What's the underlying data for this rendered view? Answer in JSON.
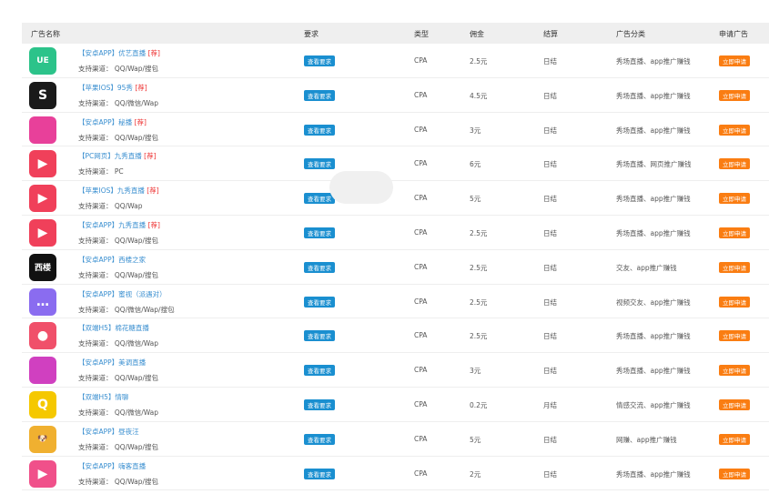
{
  "headers": {
    "name": "广告名称",
    "req": "要求",
    "type": "类型",
    "commission": "佣金",
    "settle": "结算",
    "category": "广告分类",
    "apply": "申请广告"
  },
  "channel_prefix": "支持渠道：",
  "view_req_label": "查看要求",
  "apply_label": "立即申请",
  "colors": {
    "link": "#3a8fd0",
    "req_button": "#1a8fd0",
    "apply_button": "#fa7d12",
    "tag": "#e33333"
  },
  "rows": [
    {
      "title": "【安卓APP】优艺直播",
      "tag": "[荐]",
      "channels": "QQ/Wap/搜包",
      "type": "CPA",
      "commission": "2.5元",
      "settle": "日结",
      "category": "秀场直播、app推广赚钱",
      "icon": "ue-logo-icon",
      "icon_color": "#2cc38a",
      "icon_text": "UE"
    },
    {
      "title": "【苹果IOS】95秀",
      "tag": "[荐]",
      "channels": "QQ/微信/Wap",
      "type": "CPA",
      "commission": "4.5元",
      "settle": "日结",
      "category": "秀场直播、app推广赚钱",
      "icon": "95xiu-logo-icon",
      "icon_color": "#1a1a1a",
      "icon_text": "S"
    },
    {
      "title": "【安卓APP】秘播",
      "tag": "[荐]",
      "channels": "QQ/Wap/搜包",
      "type": "CPA",
      "commission": "3元",
      "settle": "日结",
      "category": "秀场直播、app推广赚钱",
      "icon": "mibo-logo-icon",
      "icon_color": "#e8409a",
      "icon_text": ""
    },
    {
      "title": "【PC网页】九秀直播",
      "tag": "[荐]",
      "channels": "PC",
      "type": "CPA",
      "commission": "6元",
      "settle": "日结",
      "category": "秀场直播、网页推广赚钱",
      "icon": "jiuxiu-logo-icon",
      "icon_color": "#f0405a",
      "icon_text": "▶"
    },
    {
      "title": "【苹果IOS】九秀直播",
      "tag": "[荐]",
      "channels": "QQ/Wap",
      "type": "CPA",
      "commission": "5元",
      "settle": "日结",
      "category": "秀场直播、app推广赚钱",
      "icon": "jiuxiu-logo-icon",
      "icon_color": "#f0405a",
      "icon_text": "▶"
    },
    {
      "title": "【安卓APP】九秀直播",
      "tag": "[荐]",
      "channels": "QQ/Wap/搜包",
      "type": "CPA",
      "commission": "2.5元",
      "settle": "日结",
      "category": "秀场直播、app推广赚钱",
      "icon": "jiuxiu-logo-icon",
      "icon_color": "#f0405a",
      "icon_text": "▶"
    },
    {
      "title": "【安卓APP】西楼之家",
      "tag": "",
      "channels": "QQ/Wap/搜包",
      "type": "CPA",
      "commission": "2.5元",
      "settle": "日结",
      "category": "交友、app推广赚钱",
      "icon": "xilou-logo-icon",
      "icon_color": "#111",
      "icon_text": "西楼"
    },
    {
      "title": "【安卓APP】蜜视（派遇对）",
      "tag": "",
      "channels": "QQ/微信/Wap/搜包",
      "type": "CPA",
      "commission": "2.5元",
      "settle": "日结",
      "category": "视频交友、app推广赚钱",
      "icon": "chat-bubble-logo-icon",
      "icon_color": "#8a6cf0",
      "icon_text": "…"
    },
    {
      "title": "【双端H5】棉花糖直播",
      "tag": "",
      "channels": "QQ/微信/Wap",
      "type": "CPA",
      "commission": "2.5元",
      "settle": "日结",
      "category": "秀场直播、app推广赚钱",
      "icon": "mianhuatang-logo-icon",
      "icon_color": "#f0506a",
      "icon_text": "●"
    },
    {
      "title": "【安卓APP】美调直播",
      "tag": "",
      "channels": "QQ/Wap/搜包",
      "type": "CPA",
      "commission": "3元",
      "settle": "日结",
      "category": "秀场直播、app推广赚钱",
      "icon": "meitiao-logo-icon",
      "icon_color": "#d040c0",
      "icon_text": ""
    },
    {
      "title": "【双端H5】情聊",
      "tag": "",
      "channels": "QQ/微信/Wap",
      "type": "CPA",
      "commission": "0.2元",
      "settle": "月结",
      "category": "情感交流、app推广赚钱",
      "icon": "qingliao-logo-icon",
      "icon_color": "#f5c800",
      "icon_text": "Q"
    },
    {
      "title": "【安卓APP】昼夜汪",
      "tag": "",
      "channels": "QQ/Wap/搜包",
      "type": "CPA",
      "commission": "5元",
      "settle": "日结",
      "category": "网赚、app推广赚钱",
      "icon": "dog-logo-icon",
      "icon_color": "#f0b030",
      "icon_text": "🐶"
    },
    {
      "title": "【安卓APP】嗨客直播",
      "tag": "",
      "channels": "QQ/Wap/搜包",
      "type": "CPA",
      "commission": "2元",
      "settle": "日结",
      "category": "秀场直播、app推广赚钱",
      "icon": "haike-logo-icon",
      "icon_color": "#f0508a",
      "icon_text": "▶"
    }
  ]
}
